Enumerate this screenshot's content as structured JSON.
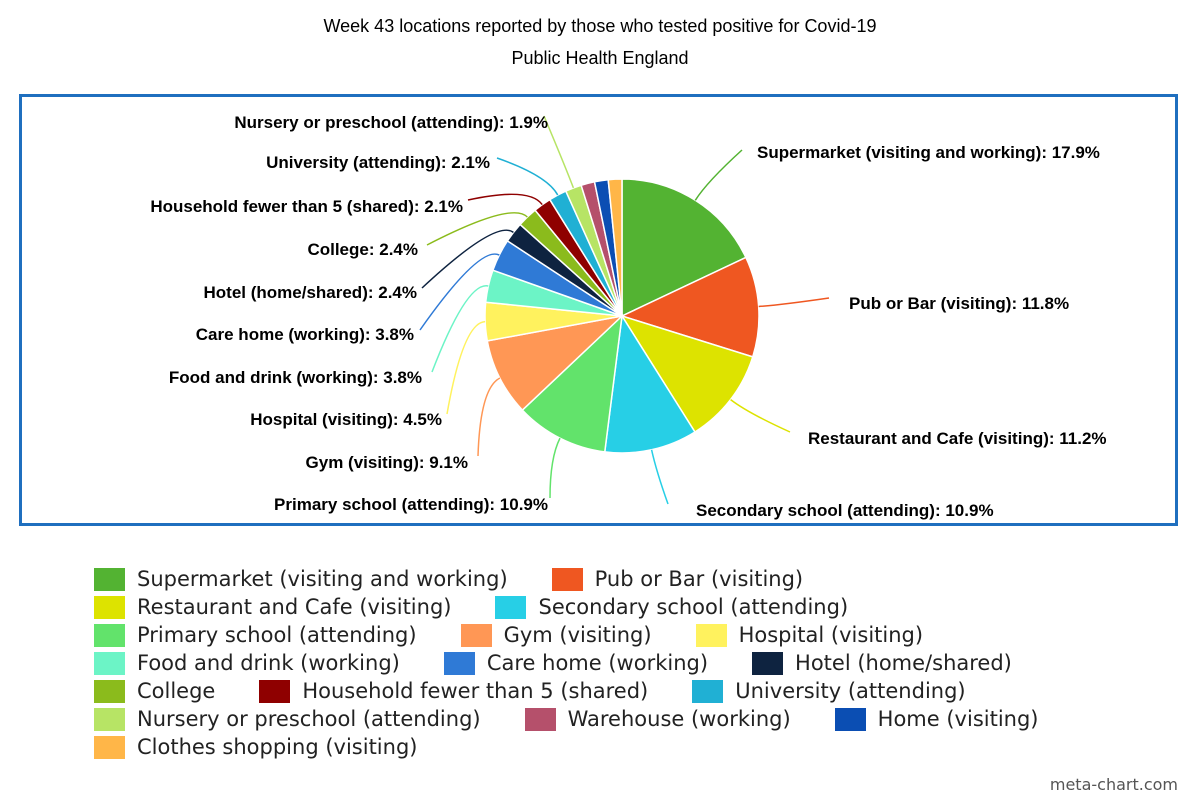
{
  "chart_data": {
    "type": "pie",
    "title": "Week 43 locations reported by those who tested positive for Covid-19",
    "subtitle": "Public Health England",
    "slices": [
      {
        "name": "Supermarket (visiting and working)",
        "value": 17.9,
        "label": "Supermarket (visiting and working): 17.9%",
        "color": "#53b332"
      },
      {
        "name": "Pub or Bar (visiting)",
        "value": 11.8,
        "label": "Pub or Bar (visiting): 11.8%",
        "color": "#ef5721"
      },
      {
        "name": "Restaurant and Cafe (visiting)",
        "value": 11.2,
        "label": "Restaurant and Cafe (visiting): 11.2%",
        "color": "#dde300"
      },
      {
        "name": "Secondary school (attending)",
        "value": 10.9,
        "label": "Secondary school (attending): 10.9%",
        "color": "#27cfe6"
      },
      {
        "name": "Primary school (attending)",
        "value": 10.9,
        "label": "Primary school (attending): 10.9%",
        "color": "#62e36b"
      },
      {
        "name": "Gym (visiting)",
        "value": 9.1,
        "label": "Gym (visiting): 9.1%",
        "color": "#ff9755"
      },
      {
        "name": "Hospital (visiting)",
        "value": 4.5,
        "label": "Hospital (visiting): 4.5%",
        "color": "#fff25e"
      },
      {
        "name": "Food and drink (working)",
        "value": 3.8,
        "label": "Food and drink (working): 3.8%",
        "color": "#6cf4c6"
      },
      {
        "name": "Care home (working)",
        "value": 3.8,
        "label": "Care home (working): 3.8%",
        "color": "#2f7ad6"
      },
      {
        "name": "Hotel (home/shared)",
        "value": 2.4,
        "label": "Hotel (home/shared): 2.4%",
        "color": "#0e2340"
      },
      {
        "name": "College",
        "value": 2.4,
        "label": "College: 2.4%",
        "color": "#8bbb1c"
      },
      {
        "name": "Household fewer than 5 (shared)",
        "value": 2.1,
        "label": "Household fewer than 5 (shared): 2.1%",
        "color": "#8f0000"
      },
      {
        "name": "University (attending)",
        "value": 2.1,
        "label": "University (attending): 2.1%",
        "color": "#20b0d4"
      },
      {
        "name": "Nursery or preschool (attending)",
        "value": 1.9,
        "label": "Nursery or preschool (attending): 1.9%",
        "color": "#b7e465"
      },
      {
        "name": "Warehouse (working)",
        "value": 1.6,
        "label": "",
        "color": "#b5506b"
      },
      {
        "name": "Home (visiting)",
        "value": 1.6,
        "label": "",
        "color": "#0b4eb3"
      },
      {
        "name": "Clothes shopping (visiting)",
        "value": 1.6,
        "label": "",
        "color": "#ffb648"
      }
    ],
    "legend_position": "bottom"
  },
  "legend_rows": [
    [
      0,
      1
    ],
    [
      2,
      3
    ],
    [
      4,
      5,
      6
    ],
    [
      7,
      8,
      9
    ],
    [
      10,
      11,
      12
    ],
    [
      13,
      14,
      15
    ],
    [
      16
    ]
  ],
  "credit": "meta-chart.com"
}
